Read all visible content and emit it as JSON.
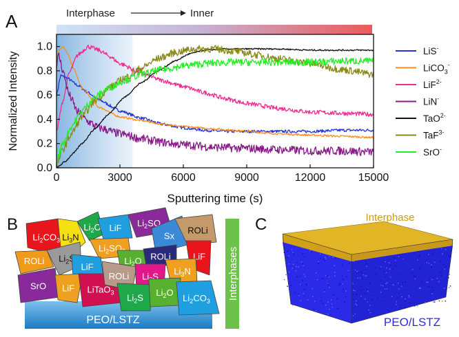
{
  "panels": {
    "a": "A",
    "b": "B",
    "c": "C"
  },
  "panel_a": {
    "header": {
      "start_label": "Interphase",
      "end_label": "Inner",
      "gradient_start": "#cfe3f5",
      "gradient_end": "#ec5a5a"
    }
  },
  "chart_data": {
    "type": "line",
    "title": "",
    "xlabel": "Sputtering time (s)",
    "ylabel": "Normalized Intensity",
    "xlim": [
      0,
      15000
    ],
    "ylim": [
      0,
      1.1
    ],
    "xticks": [
      "0",
      "3000",
      "6000",
      "9000",
      "12000",
      "15000"
    ],
    "yticks": [
      "0.0",
      "0.2",
      "0.4",
      "0.6",
      "0.8",
      "1.0"
    ],
    "grid": false,
    "legend_position": "right",
    "shaded_region": {
      "x_start": 0,
      "x_end": 3600,
      "color": "#9cc4ea"
    },
    "series": [
      {
        "name": "LiS",
        "superscript": "-",
        "color": "#2233dd",
        "x": [
          0,
          200,
          500,
          1000,
          1500,
          2000,
          3000,
          4000,
          5000,
          6000,
          7000,
          8000,
          9000,
          10500,
          12000,
          13500,
          15000
        ],
        "y": [
          0.6,
          0.76,
          0.74,
          0.68,
          0.62,
          0.56,
          0.47,
          0.41,
          0.36,
          0.33,
          0.31,
          0.3,
          0.3,
          0.3,
          0.3,
          0.31,
          0.31
        ]
      },
      {
        "name": "LiCO",
        "sub": "3",
        "superscript": "-",
        "color": "#ff8c1a",
        "x": [
          0,
          150,
          300,
          500,
          800,
          1200,
          2000,
          3000,
          4000,
          5000,
          6000,
          7500,
          9000,
          10500,
          12000,
          13500,
          15000
        ],
        "y": [
          0.9,
          0.98,
          1.0,
          0.95,
          0.82,
          0.66,
          0.5,
          0.42,
          0.39,
          0.36,
          0.34,
          0.32,
          0.3,
          0.28,
          0.27,
          0.26,
          0.25
        ]
      },
      {
        "name": "LiF",
        "superscript": "2-",
        "color": "#ee2d8e",
        "x": [
          0,
          300,
          600,
          1000,
          1500,
          2000,
          2500,
          3000,
          4000,
          5000,
          6000,
          7000,
          8000,
          9000,
          10500,
          12000,
          13500,
          15000
        ],
        "y": [
          0.3,
          0.55,
          0.78,
          0.93,
          1.0,
          0.97,
          0.92,
          0.86,
          0.78,
          0.72,
          0.67,
          0.62,
          0.57,
          0.53,
          0.49,
          0.46,
          0.45,
          0.44
        ]
      },
      {
        "name": "LiN",
        "superscript": "-",
        "color": "#8a1a8a",
        "x": [
          0,
          100,
          300,
          600,
          1000,
          1500,
          2000,
          3000,
          4000,
          5000,
          6000,
          7500,
          9000,
          10500,
          12000,
          13500,
          15000
        ],
        "y": [
          0.85,
          0.93,
          0.8,
          0.6,
          0.46,
          0.38,
          0.33,
          0.28,
          0.24,
          0.21,
          0.19,
          0.17,
          0.16,
          0.15,
          0.14,
          0.14,
          0.13
        ]
      },
      {
        "name": "TaO",
        "superscript": "2-",
        "color": "#111111",
        "x": [
          0,
          400,
          800,
          1200,
          1800,
          2500,
          3200,
          4000,
          4800,
          5600,
          6300,
          7000,
          8000,
          9000,
          10500,
          12000,
          13500,
          15000
        ],
        "y": [
          0.0,
          0.05,
          0.12,
          0.2,
          0.32,
          0.45,
          0.58,
          0.7,
          0.8,
          0.88,
          0.94,
          0.97,
          0.98,
          0.98,
          0.98,
          0.97,
          0.97,
          0.97
        ]
      },
      {
        "name": "TaF",
        "superscript": "3-",
        "color": "#8a8a1a",
        "x": [
          0,
          300,
          700,
          1200,
          1800,
          2500,
          3200,
          4000,
          4800,
          5600,
          6500,
          7500,
          8500,
          9500,
          10500,
          12000,
          13500,
          15000
        ],
        "y": [
          0.02,
          0.15,
          0.28,
          0.42,
          0.55,
          0.66,
          0.74,
          0.82,
          0.9,
          0.95,
          0.98,
          0.98,
          0.96,
          0.93,
          0.9,
          0.86,
          0.81,
          0.77
        ]
      },
      {
        "name": "SrO",
        "superscript": "-",
        "color": "#22ee22",
        "x": [
          0,
          300,
          700,
          1200,
          1800,
          2500,
          3200,
          4000,
          5000,
          6000,
          7000,
          8000,
          9000,
          10500,
          12000,
          13500,
          15000
        ],
        "y": [
          0.05,
          0.2,
          0.34,
          0.47,
          0.58,
          0.66,
          0.72,
          0.77,
          0.81,
          0.84,
          0.86,
          0.87,
          0.87,
          0.87,
          0.87,
          0.88,
          0.88
        ]
      }
    ]
  },
  "panel_b": {
    "substrate_label": "PEO/LSTZ",
    "side_label": "Interphases",
    "substrate_color": "#2b8ad0",
    "side_color": "#6cc24a",
    "grains": [
      {
        "text": "Li2CO3",
        "sub": [
          "Li",
          "2",
          "CO",
          "3",
          ""
        ],
        "color": "#e8161c"
      },
      {
        "text": "Li3N",
        "sub": [
          "Li",
          "3",
          "N",
          "",
          ""
        ],
        "color": "#f5e012"
      },
      {
        "text": "Li2O",
        "sub": [
          "Li",
          "2",
          "O",
          "",
          ""
        ],
        "color": "#1fa84a"
      },
      {
        "text": "LiF",
        "sub": [
          "LiF",
          "",
          "",
          "",
          ""
        ],
        "color": "#1f9fe0"
      },
      {
        "text": "Li2SO3",
        "sub": [
          "Li",
          "2",
          "SO",
          "3",
          ""
        ],
        "color": "#8a2a9a"
      },
      {
        "text": "Sx",
        "sub": [
          "Sx",
          "",
          "",
          "",
          ""
        ],
        "color": "#3a8ad8"
      },
      {
        "text": "ROLi",
        "sub": [
          "ROLi",
          "",
          "",
          "",
          ""
        ],
        "color": "#c49a6a"
      },
      {
        "text": "Li2SO3",
        "sub": [
          "Li",
          "2",
          "SO",
          "3",
          ""
        ],
        "color": "#f0a020"
      },
      {
        "text": "ROLi",
        "sub": [
          "ROLi",
          "",
          "",
          "",
          ""
        ],
        "color": "#f09a1c"
      },
      {
        "text": "Li2S",
        "sub": [
          "Li",
          "2",
          "S",
          "",
          ""
        ],
        "color": "#9a9a9a"
      },
      {
        "text": "LiF",
        "sub": [
          "LiF",
          "",
          "",
          "",
          ""
        ],
        "color": "#1f9fe0"
      },
      {
        "text": "Li2O",
        "sub": [
          "Li",
          "2",
          "O",
          "",
          ""
        ],
        "color": "#58b030"
      },
      {
        "text": "ROLi",
        "sub": [
          "ROLi",
          "",
          "",
          "",
          ""
        ],
        "color": "#2a2a7a"
      },
      {
        "text": "LiF",
        "sub": [
          "LiF",
          "",
          "",
          "",
          ""
        ],
        "color": "#e8161c"
      },
      {
        "text": "Li3N",
        "sub": [
          "Li",
          "3",
          "N",
          "",
          ""
        ],
        "color": "#f0a020"
      },
      {
        "text": "SrO",
        "sub": [
          "SrO",
          "",
          "",
          "",
          ""
        ],
        "color": "#8a2a9a"
      },
      {
        "text": "LiF",
        "sub": [
          "LiF",
          "",
          "",
          "",
          ""
        ],
        "color": "#f0a020"
      },
      {
        "text": "LiTaO3",
        "sub": [
          "LiTaO",
          "3",
          "",
          "",
          ""
        ],
        "color": "#d01050"
      },
      {
        "text": "ROLi",
        "sub": [
          "ROLi",
          "",
          "",
          "",
          ""
        ],
        "color": "#b89a8a"
      },
      {
        "text": "Li2S",
        "sub": [
          "Li",
          "2",
          "S",
          "",
          ""
        ],
        "color": "#e0188a"
      },
      {
        "text": "Li2S",
        "sub": [
          "Li",
          "2",
          "S",
          "",
          ""
        ],
        "color": "#1fa84a"
      },
      {
        "text": "Li2O",
        "sub": [
          "Li",
          "2",
          "O",
          "",
          ""
        ],
        "color": "#58b030"
      },
      {
        "text": "Li2CO3",
        "sub": [
          "Li",
          "2",
          "CO",
          "3",
          ""
        ],
        "color": "#1f9fe0"
      }
    ]
  },
  "panel_c": {
    "top_label": "Interphase",
    "bottom_label": "PEO/LSTZ",
    "top_color": "#e0b020",
    "bulk_color": "#2a2ae8",
    "top_label_color": "#d09a10",
    "bottom_label_color": "#2a2ae8"
  }
}
